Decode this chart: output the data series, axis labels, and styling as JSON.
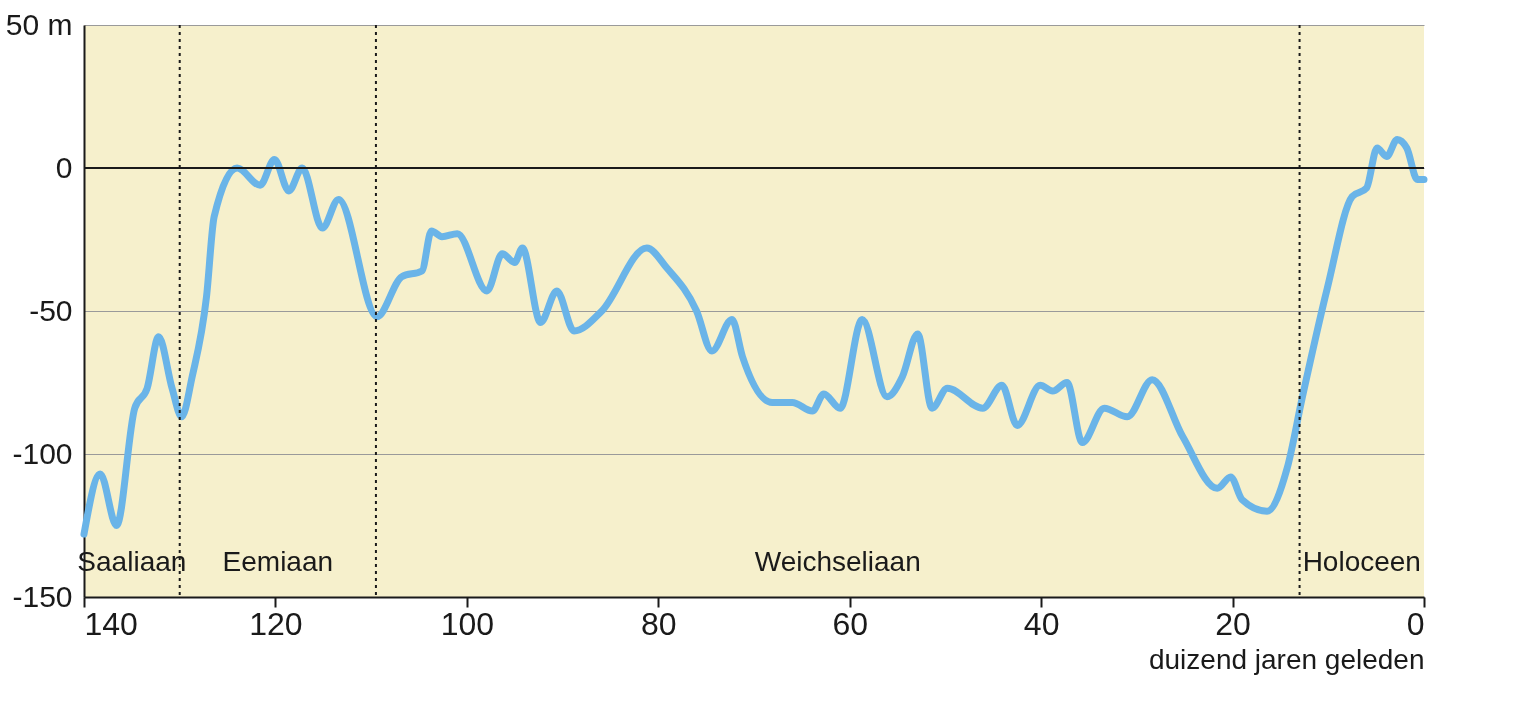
{
  "chart_data": {
    "type": "line",
    "xlabel": "duizend jaren geleden",
    "xlim": [
      140,
      0
    ],
    "xticks": [
      140,
      120,
      100,
      80,
      60,
      40,
      20,
      0
    ],
    "ylim": [
      -150,
      50
    ],
    "yticks": [
      -150,
      -100,
      -50,
      0,
      {
        "value": 50,
        "label": "50 m"
      }
    ],
    "grid": "y",
    "line_style": "solid",
    "series": [
      {
        "color": "#6ab4e8",
        "x": [
          140,
          138.3,
          136.6,
          134.7,
          133.4,
          132.2,
          130.8,
          129.8,
          128.7,
          127.2,
          126.4,
          124,
          121.6,
          120.1,
          118.6,
          117.2,
          115.1,
          113.4,
          109.4,
          106.8,
          104.7,
          103.7,
          102.6,
          101,
          97.9,
          96.3,
          95,
          94.2,
          92.3,
          90.6,
          88.8,
          85.9,
          81.2,
          79.1,
          76,
          74.4,
          72.3,
          71.2,
          68.1,
          66,
          63.9,
          62.7,
          61,
          58.7,
          56.1,
          54.5,
          52.9,
          51.4,
          49.8,
          46.1,
          44.1,
          42.5,
          40.1,
          38.8,
          37.3,
          35.7,
          33.4,
          31,
          28.4,
          25.2,
          21.6,
          20.2,
          19,
          16.4,
          14.3,
          12.7,
          10.1,
          7.5,
          6,
          4.9,
          3.9,
          2.8,
          1.8,
          0.7,
          0
        ],
        "values": [
          -128,
          -107,
          -125,
          -84,
          -77,
          -59,
          -77,
          -87,
          -73,
          -45,
          -17,
          0,
          -6,
          3,
          -8,
          0,
          -21,
          -11,
          -52,
          -38,
          -36,
          -22,
          -24,
          -23,
          -43,
          -30,
          -33,
          -28,
          -54,
          -43,
          -57,
          -50,
          -28,
          -35,
          -50,
          -64,
          -53,
          -66,
          -82,
          -82,
          -85,
          -79,
          -84,
          -53,
          -80,
          -73,
          -58,
          -84,
          -77,
          -84,
          -76,
          -90,
          -76,
          -78,
          -75,
          -96,
          -84,
          -87,
          -74,
          -94,
          -112,
          -108,
          -116,
          -120,
          -105,
          -80,
          -42,
          -10,
          -7,
          7,
          4,
          10,
          7,
          -4,
          -4
        ]
      }
    ],
    "ref_lines": [
      {
        "axis": "y",
        "value": 0,
        "color": "#1a1a1a",
        "line_style": "solid"
      },
      {
        "axis": "x",
        "value": 130,
        "color": "#1a1a1a",
        "line_style": "dotted"
      },
      {
        "axis": "x",
        "value": 109.5,
        "color": "#1a1a1a",
        "line_style": "dotted"
      },
      {
        "axis": "x",
        "value": 13,
        "color": "#1a1a1a",
        "line_style": "dotted"
      }
    ],
    "annotations": [
      "Saaliaan",
      "Eemiaan",
      "Weichseliaan",
      "Holoceen"
    ]
  }
}
